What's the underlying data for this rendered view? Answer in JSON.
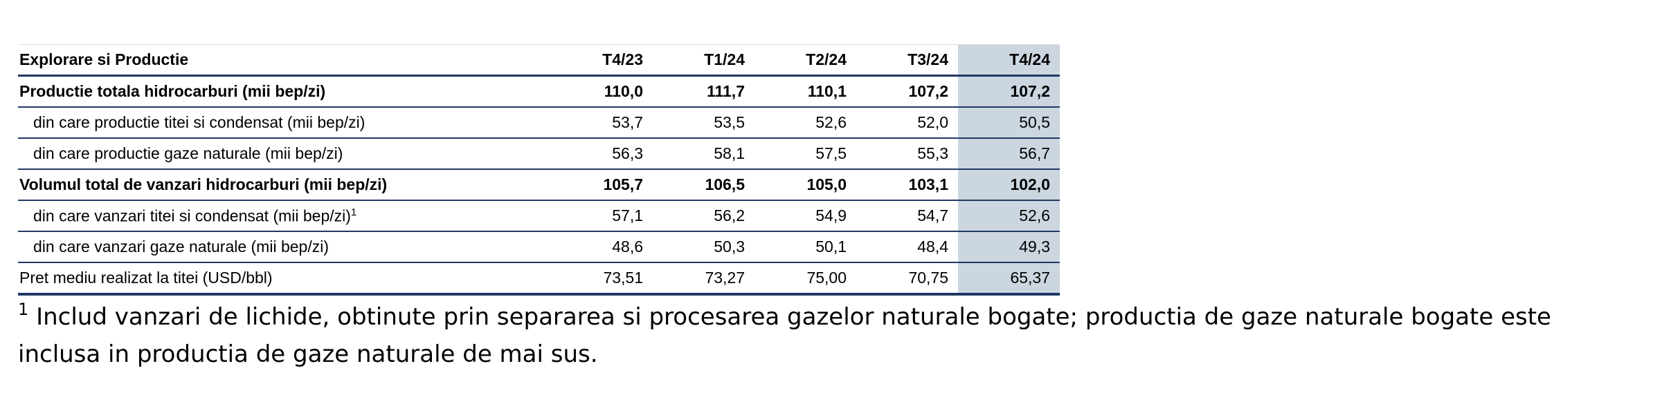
{
  "table": {
    "header": [
      "Explorare si Productie",
      "T4/23",
      "T1/24",
      "T2/24",
      "T3/24",
      "T4/24"
    ],
    "rows": [
      {
        "label": "Productie totala hidrocarburi (mii bep/zi)",
        "values": [
          "110,0",
          "111,7",
          "110,1",
          "107,2",
          "107,2"
        ],
        "bold": true,
        "indent": false
      },
      {
        "label": "din care productie titei si condensat (mii bep/zi)",
        "values": [
          "53,7",
          "53,5",
          "52,6",
          "52,0",
          "50,5"
        ],
        "bold": false,
        "indent": true
      },
      {
        "label": "din care productie gaze naturale (mii bep/zi)",
        "values": [
          "56,3",
          "58,1",
          "57,5",
          "55,3",
          "56,7"
        ],
        "bold": false,
        "indent": true
      },
      {
        "label": "Volumul total de vanzari hidrocarburi (mii bep/zi)",
        "values": [
          "105,7",
          "106,5",
          "105,0",
          "103,1",
          "102,0"
        ],
        "bold": true,
        "indent": false
      },
      {
        "label": "din care vanzari titei si condensat (mii bep/zi)",
        "note_ref": "1",
        "values": [
          "57,1",
          "56,2",
          "54,9",
          "54,7",
          "52,6"
        ],
        "bold": false,
        "indent": true
      },
      {
        "label": "din care vanzari gaze naturale (mii bep/zi)",
        "values": [
          "48,6",
          "50,3",
          "50,1",
          "48,4",
          "49,3"
        ],
        "bold": false,
        "indent": true
      },
      {
        "label": "Pret mediu realizat la titei (USD/bbl)",
        "values": [
          "73,51",
          "73,27",
          "75,00",
          "70,75",
          "65,37"
        ],
        "bold": false,
        "indent": false
      }
    ],
    "highlight_column": 4
  },
  "footnote": {
    "marker": "1",
    "text": "Includ vanzari de lichide, obtinute prin separarea si procesarea gazelor naturale bogate; productia de gaze naturale bogate este inclusa in productia de gaze naturale de mai sus."
  }
}
